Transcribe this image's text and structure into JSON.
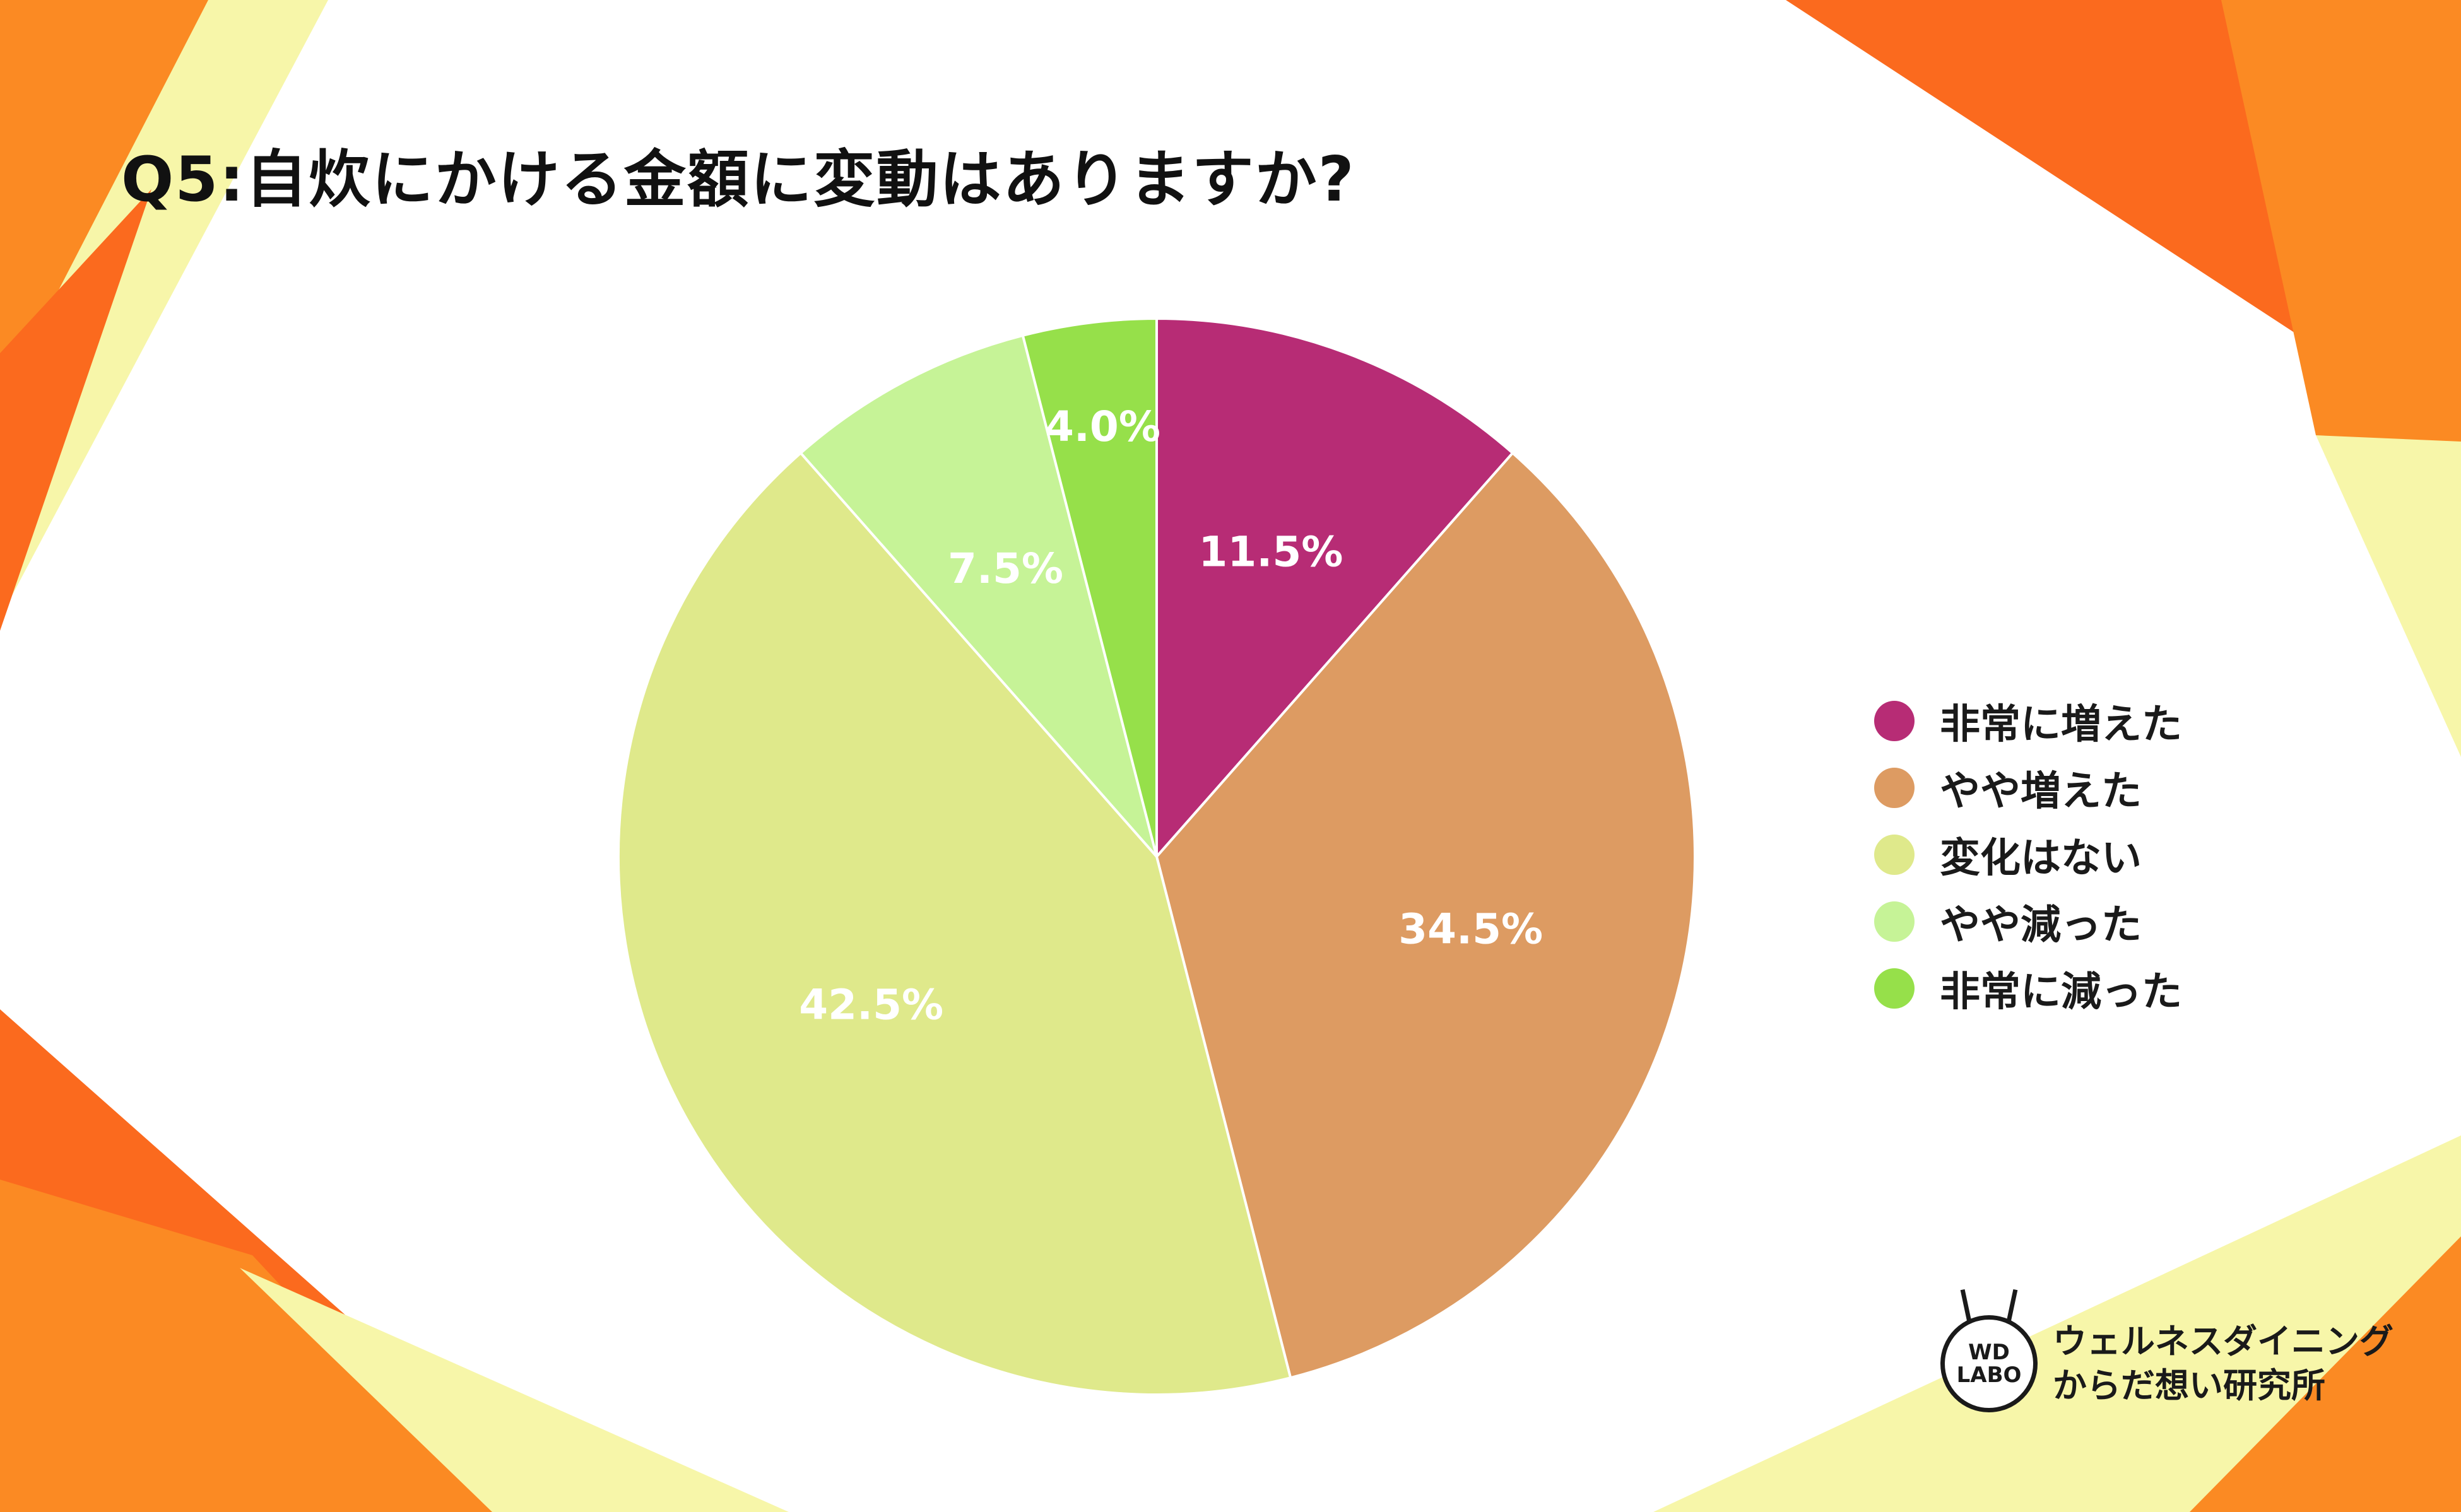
{
  "title": "Q5:自炊にかける金額に変動はありますか?",
  "chart_data": {
    "type": "pie",
    "title": "Q5:自炊にかける金額に変動はありますか?",
    "categories": [
      "非常に増えた",
      "やや増えた",
      "変化はない",
      "やや減った",
      "非常に減った"
    ],
    "values": [
      11.5,
      34.5,
      42.5,
      7.5,
      4.0
    ],
    "labels": [
      "11.5%",
      "34.5%",
      "42.5%",
      "7.5%",
      "4.0%"
    ],
    "colors": [
      "#b72c75",
      "#dd9b62",
      "#dfe98b",
      "#c6f397",
      "#96e04a"
    ],
    "start_angle": "12 o'clock",
    "direction": "clockwise",
    "legend_position": "right"
  },
  "legend": [
    {
      "label": "非常に増えた",
      "color": "#b72c75"
    },
    {
      "label": "やや増えた",
      "color": "#dd9b62"
    },
    {
      "label": "変化はない",
      "color": "#dfe98b"
    },
    {
      "label": "やや減った",
      "color": "#c6f397"
    },
    {
      "label": "非常に減った",
      "color": "#96e04a"
    }
  ],
  "logo": {
    "badge_line1": "WD",
    "badge_line2": "LABO",
    "text_line1": "ウェルネスダイニング",
    "text_line2": "からだ想い研究所"
  },
  "colors": {
    "orange": "#fb8a23",
    "orange_dark": "#fb6a1e",
    "yellow": "#f7f6a9"
  }
}
